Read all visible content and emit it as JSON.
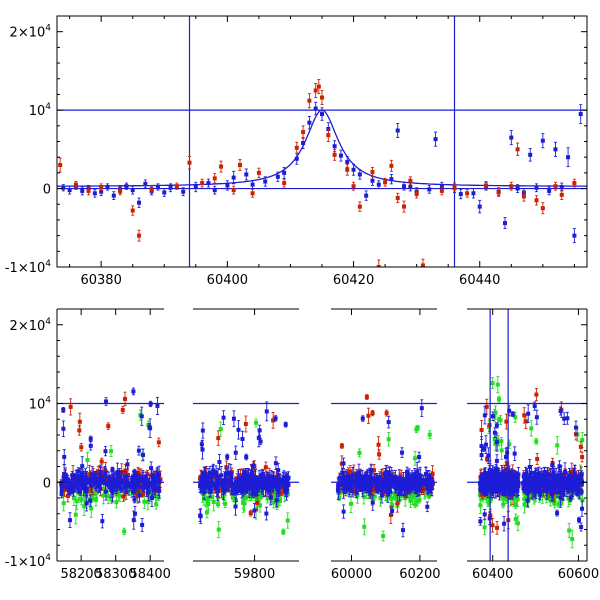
{
  "chart_data": [
    {
      "type": "scatter",
      "title": "",
      "xlabel": "",
      "ylabel": "",
      "xlim": [
        60373,
        60457
      ],
      "ylim": [
        -10000,
        22000
      ],
      "grid": false,
      "x_ticks": [
        {
          "value": 60380,
          "label": "60380"
        },
        {
          "value": 60400,
          "label": "60400"
        },
        {
          "value": 60420,
          "label": "60420"
        },
        {
          "value": 60440,
          "label": "60440"
        }
      ],
      "y_ticks": [
        {
          "value": -10000,
          "base": "-1×10",
          "exp": "4"
        },
        {
          "value": 0,
          "base": "0",
          "exp": ""
        },
        {
          "value": 10000,
          "base": "10",
          "exp": "4"
        },
        {
          "value": 20000,
          "base": "2×10",
          "exp": "4"
        }
      ],
      "reference_lines": {
        "vertical": [
          60394,
          60436
        ],
        "horizontal": [
          0,
          10000
        ]
      },
      "model_curve": {
        "color": "#1d1dd6",
        "peak_x": 60415,
        "peak_y": 10000
      },
      "series": [
        {
          "color": "#1d1dd6",
          "points": [
            {
              "x": 60374,
              "y": 100,
              "e": 400
            },
            {
              "x": 60375,
              "y": -200,
              "e": 500
            },
            {
              "x": 60376,
              "y": 300,
              "e": 400
            },
            {
              "x": 60377,
              "y": -300,
              "e": 500
            },
            {
              "x": 60378,
              "y": 0,
              "e": 400
            },
            {
              "x": 60379,
              "y": -600,
              "e": 500
            },
            {
              "x": 60380,
              "y": -400,
              "e": 500
            },
            {
              "x": 60381,
              "y": 200,
              "e": 400
            },
            {
              "x": 60382,
              "y": -900,
              "e": 500
            },
            {
              "x": 60383,
              "y": -100,
              "e": 500
            },
            {
              "x": 60384,
              "y": 300,
              "e": 400
            },
            {
              "x": 60385,
              "y": -200,
              "e": 500
            },
            {
              "x": 60386,
              "y": -1800,
              "e": 600
            },
            {
              "x": 60387,
              "y": 600,
              "e": 500
            },
            {
              "x": 60388,
              "y": -300,
              "e": 500
            },
            {
              "x": 60389,
              "y": 200,
              "e": 400
            },
            {
              "x": 60390,
              "y": -500,
              "e": 500
            },
            {
              "x": 60391,
              "y": 100,
              "e": 500
            },
            {
              "x": 60393,
              "y": -400,
              "e": 500
            },
            {
              "x": 60395,
              "y": 200,
              "e": 600
            },
            {
              "x": 60397,
              "y": 700,
              "e": 500
            },
            {
              "x": 60398,
              "y": -200,
              "e": 500
            },
            {
              "x": 60400,
              "y": 400,
              "e": 600
            },
            {
              "x": 60401,
              "y": 1400,
              "e": 800
            },
            {
              "x": 60403,
              "y": 1800,
              "e": 700
            },
            {
              "x": 60404,
              "y": 500,
              "e": 500
            },
            {
              "x": 60406,
              "y": 900,
              "e": 600
            },
            {
              "x": 60408,
              "y": 1500,
              "e": 600
            },
            {
              "x": 60409,
              "y": 2000,
              "e": 700
            },
            {
              "x": 60411,
              "y": 3800,
              "e": 700
            },
            {
              "x": 60412,
              "y": 5800,
              "e": 700
            },
            {
              "x": 60413,
              "y": 8400,
              "e": 800
            },
            {
              "x": 60414,
              "y": 10200,
              "e": 800
            },
            {
              "x": 60415,
              "y": 9500,
              "e": 800
            },
            {
              "x": 60416,
              "y": 7600,
              "e": 800
            },
            {
              "x": 60417,
              "y": 5400,
              "e": 700
            },
            {
              "x": 60418,
              "y": 4200,
              "e": 700
            },
            {
              "x": 60419,
              "y": 3400,
              "e": 700
            },
            {
              "x": 60420,
              "y": 2400,
              "e": 700
            },
            {
              "x": 60421,
              "y": 1800,
              "e": 600
            },
            {
              "x": 60422,
              "y": -900,
              "e": 600
            },
            {
              "x": 60423,
              "y": 1000,
              "e": 600
            },
            {
              "x": 60424,
              "y": 500,
              "e": 500
            },
            {
              "x": 60426,
              "y": 1200,
              "e": 600
            },
            {
              "x": 60427,
              "y": 7400,
              "e": 900
            },
            {
              "x": 60428,
              "y": 300,
              "e": 500
            },
            {
              "x": 60429,
              "y": 200,
              "e": 500
            },
            {
              "x": 60430,
              "y": -400,
              "e": 500
            },
            {
              "x": 60432,
              "y": -100,
              "e": 500
            },
            {
              "x": 60433,
              "y": 6300,
              "e": 900
            },
            {
              "x": 60434,
              "y": 300,
              "e": 500
            },
            {
              "x": 60436,
              "y": 100,
              "e": 600
            },
            {
              "x": 60437,
              "y": -700,
              "e": 600
            },
            {
              "x": 60439,
              "y": -600,
              "e": 600
            },
            {
              "x": 60440,
              "y": -2300,
              "e": 800
            },
            {
              "x": 60441,
              "y": 300,
              "e": 500
            },
            {
              "x": 60443,
              "y": -400,
              "e": 500
            },
            {
              "x": 60444,
              "y": -4400,
              "e": 700
            },
            {
              "x": 60445,
              "y": 6500,
              "e": 900
            },
            {
              "x": 60446,
              "y": 0,
              "e": 500
            },
            {
              "x": 60447,
              "y": -500,
              "e": 500
            },
            {
              "x": 60448,
              "y": 4300,
              "e": 800
            },
            {
              "x": 60449,
              "y": 100,
              "e": 500
            },
            {
              "x": 60450,
              "y": 6100,
              "e": 900
            },
            {
              "x": 60451,
              "y": -300,
              "e": 500
            },
            {
              "x": 60452,
              "y": 5000,
              "e": 900
            },
            {
              "x": 60453,
              "y": 200,
              "e": 500
            },
            {
              "x": 60454,
              "y": 4000,
              "e": 1200
            },
            {
              "x": 60455,
              "y": -6000,
              "e": 900
            },
            {
              "x": 60456,
              "y": 9500,
              "e": 1200
            }
          ]
        },
        {
          "color": "#cc2200",
          "points": [
            {
              "x": 60373.5,
              "y": 3000,
              "e": 900
            },
            {
              "x": 60376,
              "y": 500,
              "e": 400
            },
            {
              "x": 60378,
              "y": -300,
              "e": 500
            },
            {
              "x": 60380,
              "y": 200,
              "e": 400
            },
            {
              "x": 60383,
              "y": -300,
              "e": 500
            },
            {
              "x": 60385,
              "y": -2800,
              "e": 600
            },
            {
              "x": 60386,
              "y": -6000,
              "e": 700
            },
            {
              "x": 60388,
              "y": -100,
              "e": 500
            },
            {
              "x": 60392,
              "y": 300,
              "e": 400
            },
            {
              "x": 60394,
              "y": 3300,
              "e": 800
            },
            {
              "x": 60396,
              "y": 700,
              "e": 500
            },
            {
              "x": 60398,
              "y": 1300,
              "e": 600
            },
            {
              "x": 60399,
              "y": 2800,
              "e": 700
            },
            {
              "x": 60401,
              "y": -200,
              "e": 500
            },
            {
              "x": 60402,
              "y": 3000,
              "e": 700
            },
            {
              "x": 60404,
              "y": -600,
              "e": 500
            },
            {
              "x": 60405,
              "y": 2000,
              "e": 600
            },
            {
              "x": 60409,
              "y": 700,
              "e": 500
            },
            {
              "x": 60411,
              "y": 5200,
              "e": 700
            },
            {
              "x": 60412,
              "y": 7200,
              "e": 800
            },
            {
              "x": 60413,
              "y": 11200,
              "e": 900
            },
            {
              "x": 60414,
              "y": 12500,
              "e": 900
            },
            {
              "x": 60414.5,
              "y": 13000,
              "e": 900
            },
            {
              "x": 60415,
              "y": 11600,
              "e": 900
            },
            {
              "x": 60416,
              "y": 6800,
              "e": 800
            },
            {
              "x": 60417,
              "y": 4300,
              "e": 700
            },
            {
              "x": 60419,
              "y": 2400,
              "e": 700
            },
            {
              "x": 60420,
              "y": 300,
              "e": 500
            },
            {
              "x": 60421,
              "y": -2300,
              "e": 600
            },
            {
              "x": 60423,
              "y": 2100,
              "e": 600
            },
            {
              "x": 60424,
              "y": -10000,
              "e": 900
            },
            {
              "x": 60425,
              "y": 800,
              "e": 500
            },
            {
              "x": 60426,
              "y": 2900,
              "e": 700
            },
            {
              "x": 60427,
              "y": -1200,
              "e": 600
            },
            {
              "x": 60428,
              "y": -2300,
              "e": 700
            },
            {
              "x": 60429,
              "y": 1000,
              "e": 500
            },
            {
              "x": 60430,
              "y": -700,
              "e": 500
            },
            {
              "x": 60431,
              "y": -9800,
              "e": 800
            },
            {
              "x": 60434,
              "y": -300,
              "e": 500
            },
            {
              "x": 60436,
              "y": 200,
              "e": 500
            },
            {
              "x": 60438,
              "y": -600,
              "e": 500
            },
            {
              "x": 60441,
              "y": 400,
              "e": 500
            },
            {
              "x": 60443,
              "y": -500,
              "e": 500
            },
            {
              "x": 60445,
              "y": 300,
              "e": 500
            },
            {
              "x": 60446,
              "y": 5000,
              "e": 800
            },
            {
              "x": 60447,
              "y": -1000,
              "e": 600
            },
            {
              "x": 60449,
              "y": -1500,
              "e": 600
            },
            {
              "x": 60450,
              "y": -2500,
              "e": 700
            },
            {
              "x": 60452,
              "y": 300,
              "e": 500
            },
            {
              "x": 60453,
              "y": -800,
              "e": 600
            },
            {
              "x": 60455,
              "y": 700,
              "e": 500
            }
          ]
        }
      ]
    },
    {
      "type": "scatter",
      "title": "",
      "xlabel": "",
      "ylabel": "",
      "ylim": [
        -10000,
        22000
      ],
      "grid": false,
      "x_segments": [
        {
          "xlim": [
            58130,
            58440
          ],
          "ticks": [
            {
              "value": 58200,
              "label": "58200"
            },
            {
              "value": 58300,
              "label": "58300"
            },
            {
              "value": 58400,
              "label": "58400"
            }
          ]
        },
        {
          "xlim": [
            59620,
            59930
          ],
          "ticks": [
            {
              "value": 59800,
              "label": "59800"
            }
          ]
        },
        {
          "xlim": [
            59940,
            60250
          ],
          "ticks": [
            {
              "value": 60000,
              "label": "60000"
            },
            {
              "value": 60200,
              "label": "60200"
            }
          ]
        },
        {
          "xlim": [
            60340,
            60620
          ],
          "ticks": [
            {
              "value": 60400,
              "label": "60400"
            },
            {
              "value": 60600,
              "label": "60600"
            }
          ]
        }
      ],
      "y_ticks": [
        {
          "value": -10000,
          "base": "-1×10",
          "exp": "4"
        },
        {
          "value": 0,
          "base": "0",
          "exp": ""
        },
        {
          "value": 10000,
          "base": "10",
          "exp": "4"
        },
        {
          "value": 20000,
          "base": "2×10",
          "exp": "4"
        }
      ],
      "reference_lines": {
        "vertical": [
          60394,
          60436
        ],
        "horizontal": [
          0,
          10000
        ]
      },
      "series": [
        {
          "color": "#1d1dd6",
          "description": "dense light-curve cloud per observing season"
        },
        {
          "color": "#cc2200",
          "description": "dense light-curve cloud per observing season"
        },
        {
          "color": "#22dd22",
          "description": "dense light-curve cloud per observing season"
        }
      ]
    }
  ]
}
